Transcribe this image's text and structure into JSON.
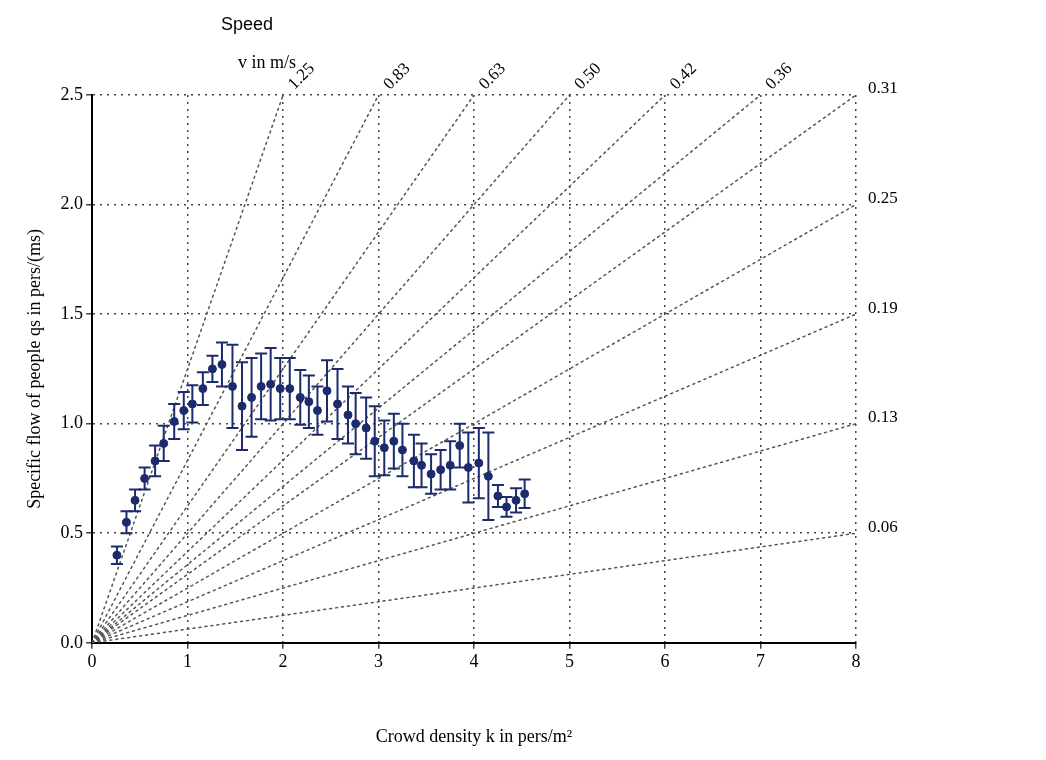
{
  "chart_data": {
    "type": "scatter",
    "xlabel": "Crowd density k in pers/m²",
    "ylabel": "Specific flow of people qs in pers/(ms)",
    "annotations": [
      "Speed",
      "v in m/s"
    ],
    "xlim": [
      0,
      8
    ],
    "xticks": [
      0,
      1,
      2,
      3,
      4,
      5,
      6,
      7,
      8
    ],
    "ylim": [
      0,
      2.5
    ],
    "yticks": [
      {
        "value": 0,
        "label": "0.0"
      },
      0.5,
      {
        "value": 1,
        "label": "1.0"
      },
      1.5,
      {
        "value": 2,
        "label": "2.0"
      },
      2.5
    ],
    "grid": true,
    "legend": false,
    "series": [
      {
        "color": "#1c2b6b",
        "marker": "circle",
        "x": [
          0.26,
          0.36,
          0.45,
          0.55,
          0.66,
          0.75,
          0.86,
          0.96,
          1.05,
          1.16,
          1.26,
          1.36,
          1.47,
          1.57,
          1.67,
          1.77,
          1.87,
          1.97,
          2.07,
          2.18,
          2.27,
          2.36,
          2.46,
          2.57,
          2.68,
          2.76,
          2.87,
          2.96,
          3.06,
          3.16,
          3.25,
          3.37,
          3.45,
          3.55,
          3.65,
          3.75,
          3.85,
          3.94,
          4.05,
          4.15,
          4.25,
          4.34,
          4.44,
          4.53
        ],
        "values": [
          0.4,
          0.55,
          0.65,
          0.75,
          0.83,
          0.91,
          1.01,
          1.06,
          1.09,
          1.16,
          1.25,
          1.27,
          1.17,
          1.08,
          1.12,
          1.17,
          1.18,
          1.16,
          1.16,
          1.12,
          1.1,
          1.06,
          1.15,
          1.09,
          1.04,
          1.0,
          0.98,
          0.92,
          0.89,
          0.92,
          0.88,
          0.83,
          0.81,
          0.77,
          0.79,
          0.81,
          0.9,
          0.8,
          0.82,
          0.76,
          0.67,
          0.62,
          0.65,
          0.68
        ],
        "errors": [
          0.04,
          0.05,
          0.05,
          0.05,
          0.07,
          0.08,
          0.08,
          0.085,
          0.085,
          0.075,
          0.06,
          0.1,
          0.19,
          0.2,
          0.18,
          0.15,
          0.165,
          0.14,
          0.14,
          0.125,
          0.12,
          0.11,
          0.14,
          0.16,
          0.13,
          0.14,
          0.14,
          0.16,
          0.125,
          0.125,
          0.12,
          0.12,
          0.1,
          0.09,
          0.09,
          0.11,
          0.1,
          0.16,
          0.16,
          0.2,
          0.05,
          0.045,
          0.055,
          0.065
        ]
      },
      {
        "type": "line",
        "name": "1.25",
        "color": "#555555",
        "line_style": "dotted",
        "marker": "none",
        "x": [
          0,
          2
        ],
        "values": [
          0,
          2.5
        ]
      },
      {
        "type": "line",
        "name": "0.83",
        "color": "#555555",
        "line_style": "dotted",
        "marker": "none",
        "x": [
          0,
          3
        ],
        "values": [
          0,
          2.5
        ]
      },
      {
        "type": "line",
        "name": "0.63",
        "color": "#555555",
        "line_style": "dotted",
        "marker": "none",
        "x": [
          0,
          4
        ],
        "values": [
          0,
          2.5
        ]
      },
      {
        "type": "line",
        "name": "0.50",
        "color": "#555555",
        "line_style": "dotted",
        "marker": "none",
        "x": [
          0,
          5
        ],
        "values": [
          0,
          2.5
        ]
      },
      {
        "type": "line",
        "name": "0.42",
        "color": "#555555",
        "line_style": "dotted",
        "marker": "none",
        "x": [
          0,
          6
        ],
        "values": [
          0,
          2.5
        ]
      },
      {
        "type": "line",
        "name": "0.36",
        "color": "#555555",
        "line_style": "dotted",
        "marker": "none",
        "x": [
          0,
          7
        ],
        "values": [
          0,
          2.5
        ]
      },
      {
        "type": "line",
        "name": "0.31",
        "color": "#555555",
        "line_style": "dotted",
        "marker": "none",
        "x": [
          0,
          8
        ],
        "values": [
          0,
          2.5
        ]
      },
      {
        "type": "line",
        "name": "0.25",
        "color": "#555555",
        "line_style": "dotted",
        "marker": "none",
        "x": [
          0,
          8
        ],
        "values": [
          0,
          2.0
        ]
      },
      {
        "type": "line",
        "name": "0.19",
        "color": "#555555",
        "line_style": "dotted",
        "marker": "none",
        "x": [
          0,
          8
        ],
        "values": [
          0,
          1.5
        ]
      },
      {
        "type": "line",
        "name": "0.13",
        "color": "#555555",
        "line_style": "dotted",
        "marker": "none",
        "x": [
          0,
          8
        ],
        "values": [
          0,
          1.0
        ]
      },
      {
        "type": "line",
        "name": "0.06",
        "color": "#555555",
        "line_style": "dotted",
        "marker": "none",
        "x": [
          0,
          8
        ],
        "values": [
          0,
          0.5
        ]
      }
    ]
  }
}
